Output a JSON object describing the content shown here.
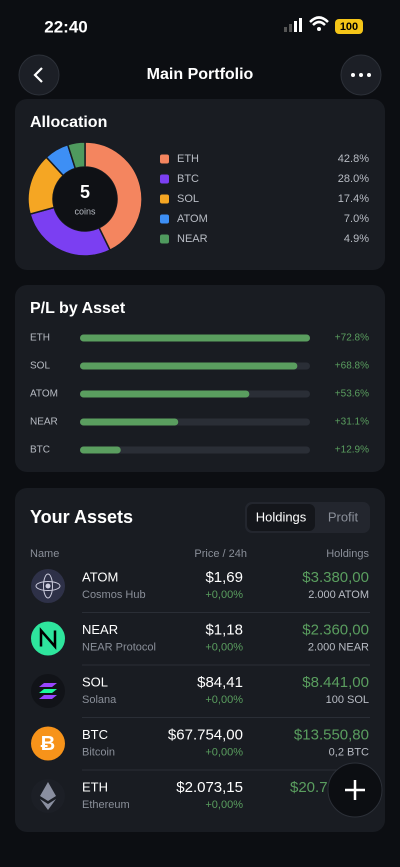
{
  "status_bar": {
    "time": "22:40",
    "battery": "100"
  },
  "header": {
    "title": "Main Portfolio"
  },
  "chart_data": [
    {
      "type": "pie",
      "title": "Allocation",
      "center_value": 5,
      "center_label": "coins",
      "categories": [
        "ETH",
        "BTC",
        "SOL",
        "ATOM",
        "NEAR"
      ],
      "values": [
        42.8,
        28.0,
        17.4,
        7.0,
        4.9
      ],
      "value_labels": [
        "42.8%",
        "28.0%",
        "17.4%",
        "7.0%",
        "4.9%"
      ],
      "colors": [
        "#f4855f",
        "#7b3ff2",
        "#f5a623",
        "#3d8ff5",
        "#4f9a5e"
      ]
    },
    {
      "type": "bar",
      "title": "P/L by Asset",
      "categories": [
        "ETH",
        "SOL",
        "ATOM",
        "NEAR",
        "BTC"
      ],
      "values": [
        72.8,
        68.8,
        53.6,
        31.1,
        12.9
      ],
      "value_labels": [
        "+72.8%",
        "+68.8%",
        "+53.6%",
        "+31.1%",
        "+12.9%"
      ],
      "color": "#5a9e5f",
      "xlim": [
        0,
        72.8
      ]
    }
  ],
  "assets": {
    "title": "Your Assets",
    "tabs": [
      "Holdings",
      "Profit"
    ],
    "columns": [
      "Name",
      "Price / 24h",
      "Holdings"
    ],
    "rows": [
      {
        "symbol": "ATOM",
        "name": "Cosmos Hub",
        "price": "$1,69",
        "change": "+0,00%",
        "value": "$3.380,00",
        "amount": "2.000 ATOM"
      },
      {
        "symbol": "NEAR",
        "name": "NEAR Protocol",
        "price": "$1,18",
        "change": "+0,00%",
        "value": "$2.360,00",
        "amount": "2.000 NEAR"
      },
      {
        "symbol": "SOL",
        "name": "Solana",
        "price": "$84,41",
        "change": "+0,00%",
        "value": "$8.441,00",
        "amount": "100 SOL"
      },
      {
        "symbol": "BTC",
        "name": "Bitcoin",
        "price": "$67.754,00",
        "change": "+0,00%",
        "value": "$13.550,80",
        "amount": "0,2 BTC"
      },
      {
        "symbol": "ETH",
        "name": "Ethereum",
        "price": "$2.073,15",
        "change": "+0,00%",
        "value": "$20.7",
        "amount": ""
      }
    ]
  }
}
